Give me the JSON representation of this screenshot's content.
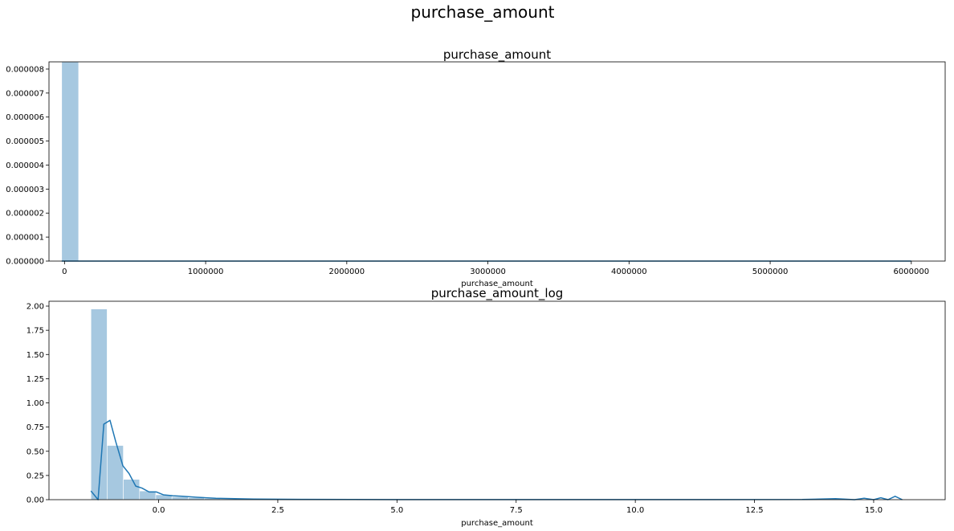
{
  "figure": {
    "suptitle": "purchase_amount"
  },
  "colors": {
    "bar_fill": "#a6c8e0",
    "kde_line": "#1f77b4",
    "axis": "#000000",
    "background": "#ffffff"
  },
  "chart_data": [
    {
      "type": "bar",
      "title": "purchase_amount",
      "xlabel": "purchase_amount",
      "ylabel": "",
      "grid": false,
      "xlim": [
        -110000,
        6240000
      ],
      "ylim": [
        0,
        8.3e-06
      ],
      "xticks": [
        0,
        1000000,
        2000000,
        3000000,
        4000000,
        5000000,
        6000000
      ],
      "xtick_labels": [
        "0",
        "1000000",
        "2000000",
        "3000000",
        "4000000",
        "5000000",
        "6000000"
      ],
      "yticks": [
        0,
        1e-06,
        2e-06,
        3e-06,
        4e-06,
        5e-06,
        6e-06,
        7e-06,
        8e-06
      ],
      "ytick_labels": [
        "0.000000",
        "0.000001",
        "0.000002",
        "0.000003",
        "0.000004",
        "0.000005",
        "0.000006",
        "0.000007",
        "0.000008"
      ],
      "bins": [
        {
          "x0": -20000,
          "x1": 100000,
          "value": 8.3e-06
        }
      ],
      "kde": {
        "x": [
          -20000,
          6000000
        ],
        "y": [
          0,
          0
        ]
      }
    },
    {
      "type": "bar",
      "title": "purchase_amount_log",
      "xlabel": "purchase_amount",
      "ylabel": "",
      "grid": false,
      "xlim": [
        -2.3,
        16.5
      ],
      "ylim": [
        0,
        2.05
      ],
      "xticks": [
        0.0,
        2.5,
        5.0,
        7.5,
        10.0,
        12.5,
        15.0
      ],
      "xtick_labels": [
        "0.0",
        "2.5",
        "5.0",
        "7.5",
        "10.0",
        "12.5",
        "15.0"
      ],
      "yticks": [
        0.0,
        0.25,
        0.5,
        0.75,
        1.0,
        1.25,
        1.5,
        1.75,
        2.0
      ],
      "ytick_labels": [
        "0.00",
        "0.25",
        "0.50",
        "0.75",
        "1.00",
        "1.25",
        "1.50",
        "1.75",
        "2.00"
      ],
      "bins": [
        {
          "x0": -1.42,
          "x1": -1.08,
          "value": 1.97
        },
        {
          "x0": -1.08,
          "x1": -0.74,
          "value": 0.56
        },
        {
          "x0": -0.74,
          "x1": -0.4,
          "value": 0.21
        },
        {
          "x0": -0.4,
          "x1": -0.06,
          "value": 0.09
        },
        {
          "x0": -0.06,
          "x1": 0.28,
          "value": 0.05
        },
        {
          "x0": 0.28,
          "x1": 0.62,
          "value": 0.03
        },
        {
          "x0": 0.62,
          "x1": 0.96,
          "value": 0.02
        },
        {
          "x0": 0.96,
          "x1": 1.3,
          "value": 0.012
        },
        {
          "x0": 1.3,
          "x1": 1.64,
          "value": 0.008
        },
        {
          "x0": 1.64,
          "x1": 1.98,
          "value": 0.005
        }
      ],
      "kde": {
        "x": [
          -1.42,
          -1.27,
          -1.15,
          -1.02,
          -0.9,
          -0.75,
          -0.62,
          -0.48,
          -0.35,
          -0.2,
          -0.05,
          0.1,
          0.3,
          0.5,
          0.8,
          1.2,
          1.6,
          2.0,
          3.0,
          5.0,
          8.0,
          11.0,
          13.5,
          14.2,
          14.6,
          14.8,
          15.0,
          15.15,
          15.3,
          15.45,
          15.6
        ],
        "y": [
          0.09,
          0.0,
          0.78,
          0.82,
          0.6,
          0.35,
          0.27,
          0.14,
          0.12,
          0.08,
          0.08,
          0.05,
          0.04,
          0.035,
          0.025,
          0.015,
          0.01,
          0.006,
          0.003,
          0.001,
          0.001,
          0.001,
          0.002,
          0.01,
          0.0,
          0.015,
          0.0,
          0.02,
          0.0,
          0.035,
          0.0
        ]
      }
    }
  ]
}
